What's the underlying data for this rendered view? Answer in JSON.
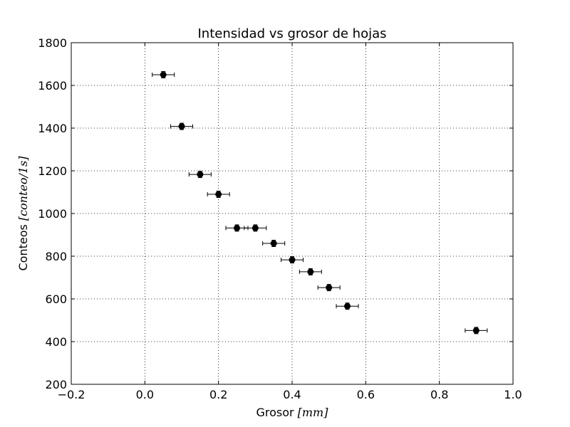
{
  "chart_data": {
    "type": "scatter",
    "title": "Intensidad vs grosor de hojas",
    "xlabel": "Grosor",
    "xlabel_unit": "[mm]",
    "ylabel": "Conteos",
    "ylabel_unit": "[conteo/1s]",
    "xlim": [
      -0.2,
      1.0
    ],
    "ylim": [
      200,
      1800
    ],
    "x_ticks": [
      "−0.2",
      "0.0",
      "0.2",
      "0.4",
      "0.6",
      "0.8",
      "1.0"
    ],
    "y_ticks": [
      "200",
      "400",
      "600",
      "800",
      "1000",
      "1200",
      "1400",
      "1600",
      "1800"
    ],
    "grid": true,
    "x_error": 0.03,
    "y_error": 15,
    "marker_color": "#000000",
    "points": [
      {
        "x": 0.05,
        "y": 1650
      },
      {
        "x": 0.1,
        "y": 1408
      },
      {
        "x": 0.15,
        "y": 1183
      },
      {
        "x": 0.2,
        "y": 1090
      },
      {
        "x": 0.25,
        "y": 932
      },
      {
        "x": 0.3,
        "y": 932
      },
      {
        "x": 0.35,
        "y": 860
      },
      {
        "x": 0.4,
        "y": 783
      },
      {
        "x": 0.45,
        "y": 727
      },
      {
        "x": 0.5,
        "y": 653
      },
      {
        "x": 0.55,
        "y": 566
      },
      {
        "x": 0.9,
        "y": 452
      }
    ]
  }
}
